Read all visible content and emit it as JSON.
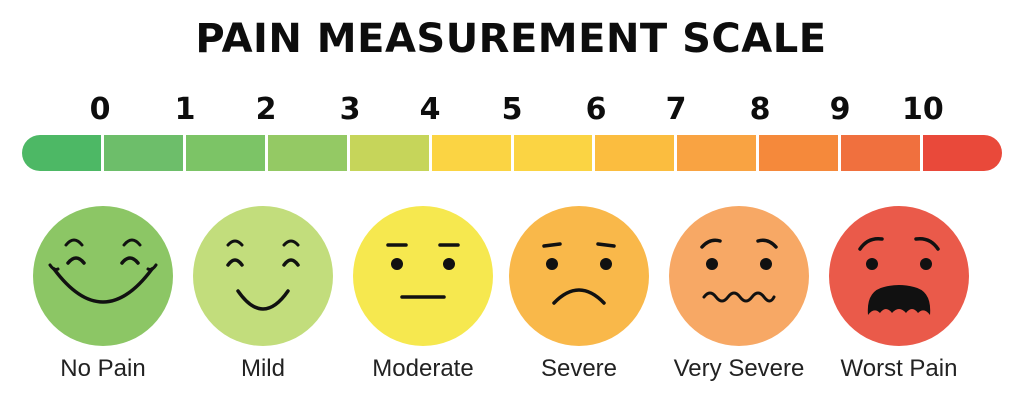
{
  "title": "PAIN MEASUREMENT SCALE",
  "scale_numbers": [
    "0",
    "1",
    "2",
    "3",
    "4",
    "5",
    "6",
    "7",
    "8",
    "9",
    "10"
  ],
  "segment_colors": [
    "#4db865",
    "#6dbe6a",
    "#7cc466",
    "#94c964",
    "#c6d55a",
    "#fbd443",
    "#fbbd3f",
    "#f9a342",
    "#f5893b",
    "#f0703e",
    "#e9493a"
  ],
  "faces": [
    {
      "label": "No Pain",
      "color": "#8cc665",
      "expression": "big-smile"
    },
    {
      "label": "Mild",
      "color": "#c2dd7c",
      "expression": "smile"
    },
    {
      "label": "Moderate",
      "color": "#f6e84f",
      "expression": "neutral"
    },
    {
      "label": "Severe",
      "color": "#f9b84a",
      "expression": "frown"
    },
    {
      "label": "Very Severe",
      "color": "#f7a865",
      "expression": "wavy-mouth"
    },
    {
      "label": "Worst Pain",
      "color": "#ea5a4a",
      "expression": "crying"
    }
  ]
}
